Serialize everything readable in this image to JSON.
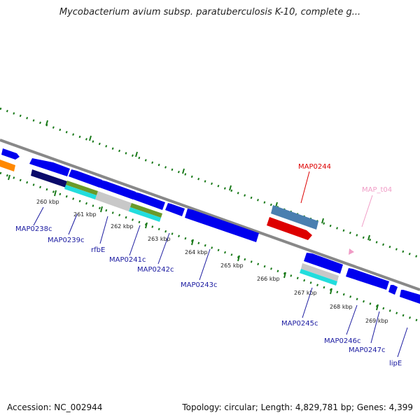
{
  "title": "Mycobacterium avium subsp. paratuberculosis K-10, complete g...",
  "footer": {
    "accession": "Accession: NC_002944",
    "summary": "Topology: circular; Length: 4,829,781 bp; Genes: 4,399"
  },
  "colors": {
    "backbone": "#888888",
    "cds": "#0000ee",
    "cds_label": "#1a1aa0",
    "highlight": "#dd0000",
    "trna": "#f09cc6",
    "tick": "#1a7a1a",
    "orange": "#ff8800",
    "navy": "#0a0a6a",
    "steel": "#4a7fb0",
    "olive": "#6a9a2a",
    "cyan": "#22dddd",
    "grey": "#c8c8c8"
  },
  "scale_labels": [
    "260 kbp",
    "261 kbp",
    "262 kbp",
    "263 kbp",
    "264 kbp",
    "265 kbp",
    "266 kbp",
    "267 kbp",
    "268 kbp",
    "269 kbp"
  ],
  "gene_labels": [
    {
      "text": "MAP0238c",
      "kind": "cds"
    },
    {
      "text": "MAP0239c",
      "kind": "cds"
    },
    {
      "text": "rfbE",
      "kind": "cds"
    },
    {
      "text": "MAP0241c",
      "kind": "cds"
    },
    {
      "text": "MAP0242c",
      "kind": "cds"
    },
    {
      "text": "MAP0243c",
      "kind": "cds"
    },
    {
      "text": "MAP0244",
      "kind": "highlight"
    },
    {
      "text": "MAP_t04",
      "kind": "trna"
    },
    {
      "text": "MAP0245c",
      "kind": "cds"
    },
    {
      "text": "MAP0246c",
      "kind": "cds"
    },
    {
      "text": "MAP0247c",
      "kind": "cds"
    },
    {
      "text": "lipE",
      "kind": "cds"
    }
  ]
}
